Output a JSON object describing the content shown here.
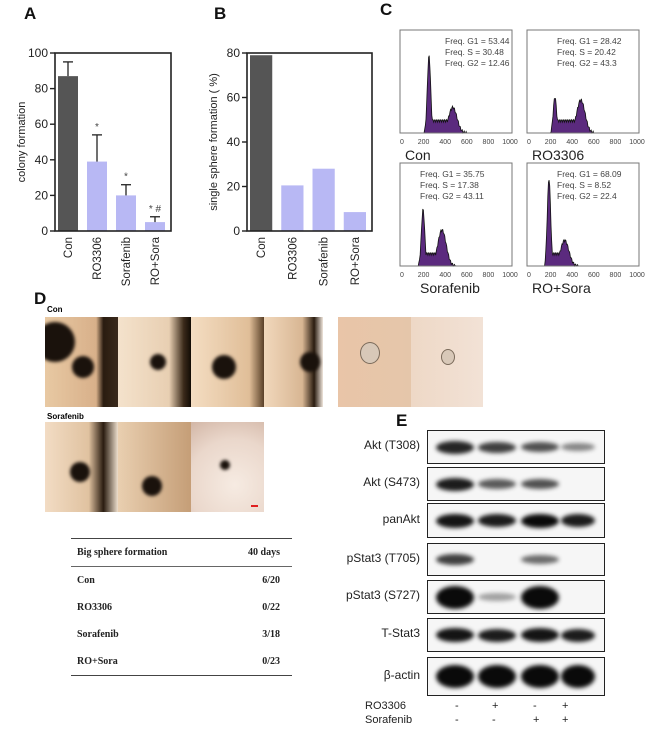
{
  "panel_labels": {
    "a": "A",
    "b": "B",
    "c": "C",
    "d": "D",
    "e": "E"
  },
  "chart_data": [
    {
      "type": "bar",
      "panel": "A",
      "ylabel": "colony formation",
      "ylim": [
        0,
        100
      ],
      "yticks": [
        0,
        20,
        40,
        60,
        80,
        100
      ],
      "categories": [
        "Con",
        "RO3306",
        "Sorafenib",
        "RO+Sora"
      ],
      "values": [
        87,
        39,
        20,
        5
      ],
      "errors": [
        8,
        15,
        6,
        3
      ],
      "annotations": [
        "",
        "*",
        "*",
        "* #"
      ],
      "colors": [
        "#555555",
        "#b8b8f4",
        "#b8b8f4",
        "#b8b8f4"
      ]
    },
    {
      "type": "bar",
      "panel": "B",
      "ylabel": "single sphere formation ( %)",
      "ylim": [
        0,
        80
      ],
      "yticks": [
        0,
        20,
        40,
        60,
        80
      ],
      "categories": [
        "Con",
        "RO3306",
        "Sorafenib",
        "RO+Sora"
      ],
      "values": [
        79,
        20.5,
        28,
        8.5
      ],
      "colors": [
        "#555555",
        "#b8b8f4",
        "#b8b8f4",
        "#b8b8f4"
      ]
    },
    {
      "type": "area",
      "panel": "C",
      "xticks": [
        "0",
        "200",
        "400",
        "600",
        "800",
        "1000"
      ],
      "fill": "#5b2a7e",
      "histograms": [
        {
          "name": "Con",
          "lines": [
            "Freq. G1  = 53.44",
            "Freq. S = 30.48",
            "Freq. G2  = 12.46"
          ],
          "g1_peak": 250,
          "g2_peak": 470,
          "g1_height": 0.75,
          "g2_height": 0.25
        },
        {
          "name": "RO3306",
          "lines": [
            "Freq. G1  = 28.42",
            "Freq. S = 20.42",
            "Freq. G2  = 43.3"
          ],
          "g1_peak": 240,
          "g2_peak": 480,
          "g1_height": 0.35,
          "g2_height": 0.32
        },
        {
          "name": "Sorafenib",
          "lines": [
            "Freq. G1  = 35.75",
            "Freq. S = 17.38",
            "Freq. G2  = 43.11"
          ],
          "g1_peak": 195,
          "g2_peak": 370,
          "g1_height": 0.55,
          "g2_height": 0.35
        },
        {
          "name": "RO+Sora",
          "lines": [
            "Freq. G1  = 68.09",
            "Freq. S = 8.52",
            "Freq. G2  = 22.4"
          ],
          "g1_peak": 185,
          "g2_peak": 330,
          "g1_height": 0.85,
          "g2_height": 0.25
        }
      ]
    }
  ],
  "panel_d": {
    "con_label": "Con",
    "sorafenib_label": "Sorafenib"
  },
  "table": {
    "header": [
      "Big sphere formation",
      "40 days"
    ],
    "rows": [
      [
        "Con",
        "6/20"
      ],
      [
        "RO3306",
        "0/22"
      ],
      [
        "Sorafenib",
        "3/18"
      ],
      [
        "RO+Sora",
        "0/23"
      ]
    ]
  },
  "blot": {
    "rows": [
      {
        "label": "Akt (T308)",
        "intensity": [
          0.85,
          0.7,
          0.6,
          0.3
        ]
      },
      {
        "label": "Akt (S473)",
        "intensity": [
          0.9,
          0.55,
          0.6,
          0
        ]
      },
      {
        "label": "panAkt",
        "intensity": [
          0.95,
          0.9,
          1,
          0.9
        ]
      },
      {
        "label": "pStat3 (T705)",
        "intensity": [
          0.7,
          0,
          0.45,
          0
        ]
      },
      {
        "label": "pStat3 (S727)",
        "intensity": [
          1,
          0.15,
          1,
          0
        ]
      },
      {
        "label": "T-Stat3",
        "intensity": [
          0.95,
          0.9,
          0.95,
          0.9
        ]
      },
      {
        "label": "β-actin",
        "intensity": [
          1,
          1,
          1,
          1
        ]
      }
    ],
    "treatments": [
      {
        "label": "RO3306",
        "signs": [
          "-",
          "+",
          "-",
          "+"
        ]
      },
      {
        "label": "Sorafenib",
        "signs": [
          "-",
          "-",
          "+",
          "+"
        ]
      }
    ]
  }
}
